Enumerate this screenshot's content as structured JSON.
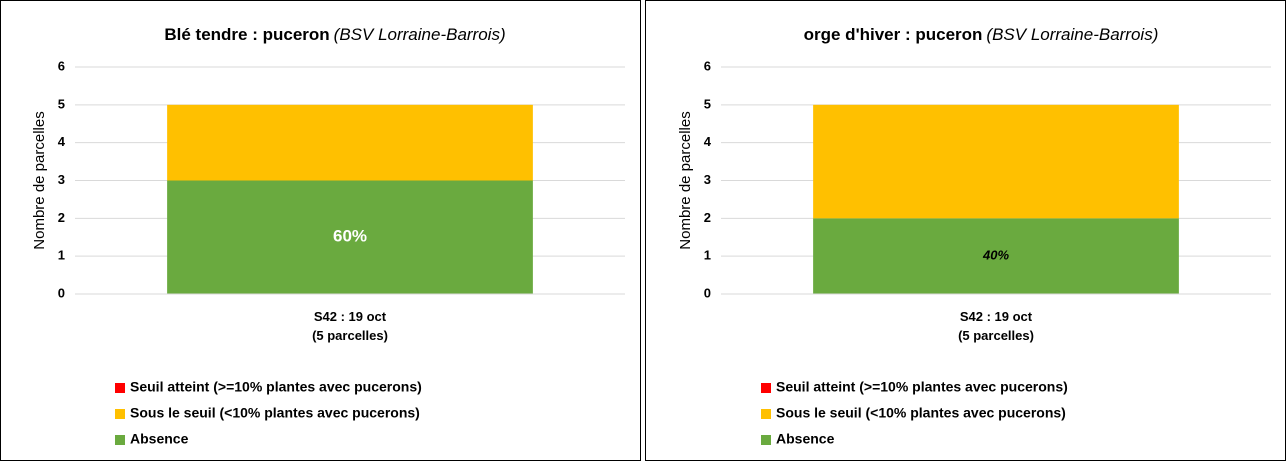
{
  "chart_data": [
    {
      "type": "stacked_bar",
      "title": "Blé tendre : puceron",
      "subtitle": "(BSV Lorraine-Barrois)",
      "y_label": "Nombre de parcelles",
      "categories": [
        "S42 : 19 oct\n(5 parcelles)"
      ],
      "series": [
        {
          "name": "Absence",
          "color": "#6aaa3f",
          "values": [
            3
          ]
        },
        {
          "name": "Sous le seuil (<10% plantes avec pucerons)",
          "color": "#ffc000",
          "values": [
            2
          ]
        },
        {
          "name": "Seuil atteint  (>=10% plantes avec pucerons)",
          "color": "#ff0000",
          "values": [
            0
          ]
        }
      ],
      "annotation": "60%",
      "ylim": [
        0,
        6
      ],
      "yticks": [
        0,
        1,
        2,
        3,
        4,
        5,
        6
      ],
      "grid": true
    },
    {
      "type": "stacked_bar",
      "title": "orge d'hiver : puceron",
      "subtitle": "(BSV Lorraine-Barrois)",
      "y_label": "Nombre de parcelles",
      "categories": [
        "S42 : 19 oct\n(5 parcelles)"
      ],
      "series": [
        {
          "name": "Absence",
          "color": "#6aaa3f",
          "values": [
            2
          ]
        },
        {
          "name": "Sous le seuil (<10% plantes avec pucerons)",
          "color": "#ffc000",
          "values": [
            3
          ]
        },
        {
          "name": "Seuil atteint  (>=10% plantes avec pucerons)",
          "color": "#ff0000",
          "values": [
            0
          ]
        }
      ],
      "annotation": "40%",
      "ylim": [
        0,
        6
      ],
      "yticks": [
        0,
        1,
        2,
        3,
        4,
        5,
        6
      ],
      "grid": true
    }
  ]
}
